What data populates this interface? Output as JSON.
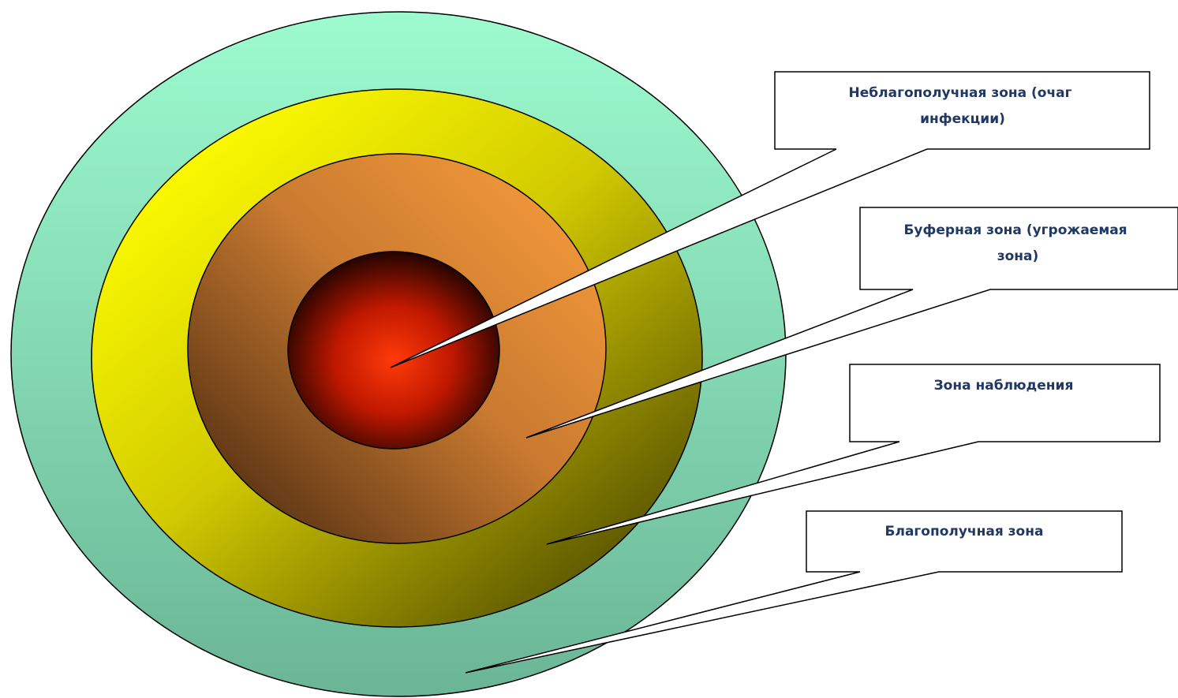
{
  "zones": [
    {
      "id": "infected",
      "label_lines": [
        "Неблагополучная зона (очаг",
        "инфекции)"
      ]
    },
    {
      "id": "buffer",
      "label_lines": [
        "Буферная зона (угрожаемая",
        "зона)"
      ]
    },
    {
      "id": "observation",
      "label_lines": [
        "Зона наблюдения"
      ]
    },
    {
      "id": "safe",
      "label_lines": [
        "Благополучная зона"
      ]
    }
  ],
  "colors": {
    "safe_ring": "#8fe6bf",
    "observation_ring": "#f5f20a",
    "buffer_ring": "#f39a3a",
    "infected_core": "#ff3300",
    "callout_border": "#000000",
    "label_text": "#1f3864"
  }
}
